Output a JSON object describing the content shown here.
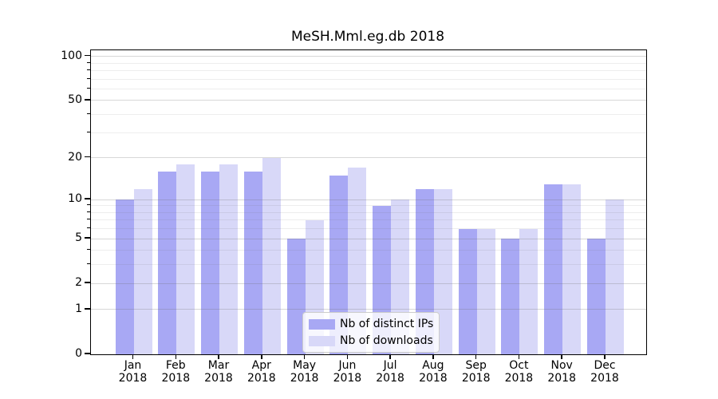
{
  "chart_data": {
    "type": "bar",
    "title": "MeSH.Mml.eg.db 2018",
    "categories": [
      "Jan",
      "Feb",
      "Mar",
      "Apr",
      "May",
      "Jun",
      "Jul",
      "Aug",
      "Sep",
      "Oct",
      "Nov",
      "Dec"
    ],
    "year_label": "2018",
    "series": [
      {
        "name": "Nb of distinct IPs",
        "color": "#a8a8f4",
        "values": [
          10,
          16,
          16,
          16,
          5,
          15,
          9,
          12,
          6,
          5,
          13,
          5
        ]
      },
      {
        "name": "Nb of downloads",
        "color": "#d8d8f8",
        "values": [
          12,
          18,
          18,
          20,
          7,
          17,
          10,
          12,
          6,
          6,
          13,
          10
        ]
      }
    ],
    "yscale": "log1p",
    "ylim": [
      0,
      110
    ],
    "yticks_major": [
      0,
      1,
      2,
      5,
      10,
      20,
      50,
      100
    ],
    "yticks_minor": [
      3,
      4,
      6,
      7,
      8,
      9,
      30,
      40,
      60,
      70,
      80,
      90
    ],
    "grid": true,
    "legend_position": "lower-center"
  },
  "colors": {
    "grid_major": "rgba(110,110,110,0.28)",
    "grid_minor": "rgba(110,110,110,0.12)",
    "axis": "#000000",
    "text": "#000000",
    "bar_distinct_ips": "#a8a8f4",
    "bar_downloads": "#d8d8f8",
    "legend_border": "#cccccc",
    "legend_bg": "rgba(255,255,255,0.8)"
  }
}
